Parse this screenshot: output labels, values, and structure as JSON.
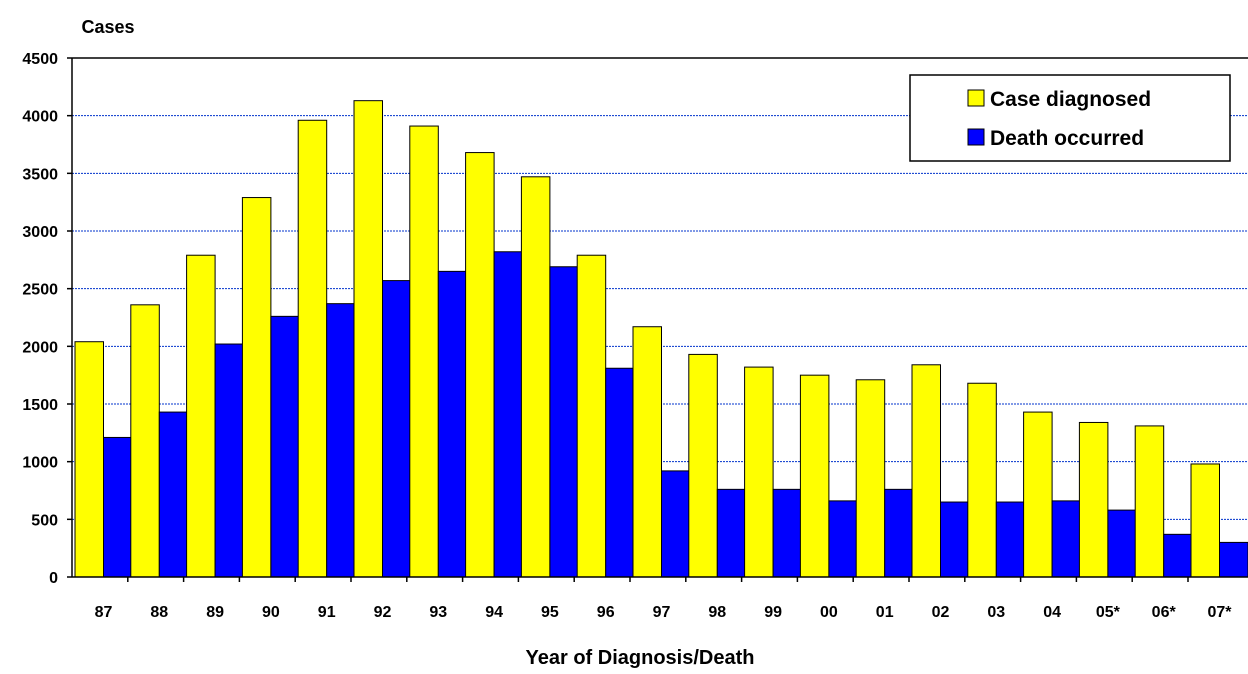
{
  "chart_data": {
    "type": "bar",
    "ylabel": "Cases",
    "xlabel": "Year of Diagnosis/Death",
    "categories": [
      "87",
      "88",
      "89",
      "90",
      "91",
      "92",
      "93",
      "94",
      "95",
      "96",
      "97",
      "98",
      "99",
      "00",
      "01",
      "02",
      "03",
      "04",
      "05*",
      "06*",
      "07*"
    ],
    "series": [
      {
        "name": "Case diagnosed",
        "color": "#ffff00",
        "values": [
          2040,
          2360,
          2790,
          3290,
          3960,
          4130,
          3910,
          3680,
          3470,
          2790,
          2170,
          1930,
          1820,
          1750,
          1710,
          1840,
          1680,
          1430,
          1340,
          1310,
          980
        ]
      },
      {
        "name": "Death occurred",
        "color": "#0000ff",
        "values": [
          1210,
          1430,
          2020,
          2260,
          2370,
          2570,
          2650,
          2820,
          2690,
          1810,
          920,
          760,
          760,
          660,
          760,
          650,
          650,
          660,
          580,
          370,
          300
        ]
      }
    ],
    "ylim": [
      0,
      4500
    ],
    "yticks": [
      0,
      500,
      1000,
      1500,
      2000,
      2500,
      3000,
      3500,
      4000,
      4500
    ],
    "grid": true,
    "grid_color": "#0033cc",
    "legend_position": "top-right"
  }
}
